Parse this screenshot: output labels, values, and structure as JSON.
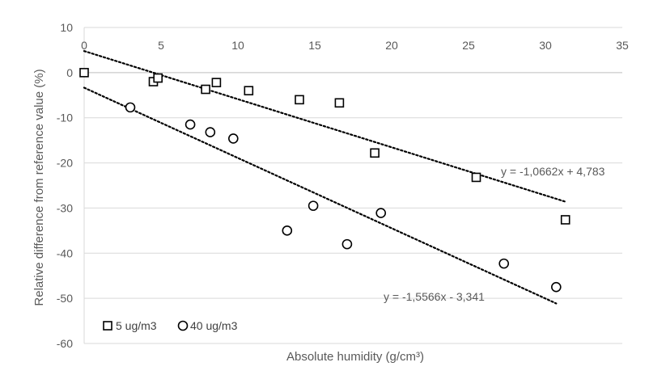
{
  "chart_data": {
    "type": "scatter",
    "xlabel": "Absolute humidity (g/cm³)",
    "ylabel": "Relative difference from reference value (%)",
    "xlim": [
      0,
      35
    ],
    "ylim": [
      -60,
      10
    ],
    "x_ticks": [
      0,
      5,
      10,
      15,
      20,
      25,
      30,
      35
    ],
    "y_ticks": [
      10,
      0,
      -10,
      -20,
      -30,
      -40,
      -50,
      -60
    ],
    "x_tick_labels": [
      "0",
      "5",
      "10",
      "15",
      "20",
      "25",
      "30",
      "35"
    ],
    "y_tick_labels": [
      "10",
      "0",
      "-10",
      "-20",
      "-30",
      "-40",
      "-50",
      "-60"
    ],
    "grid": "horizontal",
    "legend_position": "bottom-left",
    "series": [
      {
        "name": "5 ug/m3",
        "marker": "square",
        "points": [
          [
            0.0,
            0.0
          ],
          [
            4.5,
            -2.0
          ],
          [
            4.8,
            -1.2
          ],
          [
            7.9,
            -3.7
          ],
          [
            8.6,
            -2.2
          ],
          [
            10.7,
            -4.0
          ],
          [
            14.0,
            -6.0
          ],
          [
            16.6,
            -6.7
          ],
          [
            18.9,
            -17.8
          ],
          [
            25.5,
            -23.2
          ],
          [
            31.3,
            -32.6
          ]
        ],
        "trendline": {
          "slope": -1.0662,
          "intercept": 4.783,
          "x_range": [
            0,
            31.3
          ],
          "label": "y = -1,0662x + 4,783"
        }
      },
      {
        "name": "40 ug/m3",
        "marker": "circle",
        "points": [
          [
            3.0,
            -7.7
          ],
          [
            6.9,
            -11.5
          ],
          [
            8.2,
            -13.2
          ],
          [
            9.7,
            -14.6
          ],
          [
            13.2,
            -35.0
          ],
          [
            14.9,
            -29.5
          ],
          [
            17.1,
            -38.0
          ],
          [
            19.3,
            -31.1
          ],
          [
            27.3,
            -42.3
          ],
          [
            30.7,
            -47.5
          ]
        ],
        "trendline": {
          "slope": -1.5566,
          "intercept": -3.341,
          "x_range": [
            0,
            30.7
          ],
          "label": "y = -1,5566x - 3,341"
        }
      }
    ],
    "colors": {
      "marker_stroke": "#000000",
      "trendline": "#000000",
      "gridline": "#d9d9d9",
      "axis_text": "#595959"
    }
  }
}
